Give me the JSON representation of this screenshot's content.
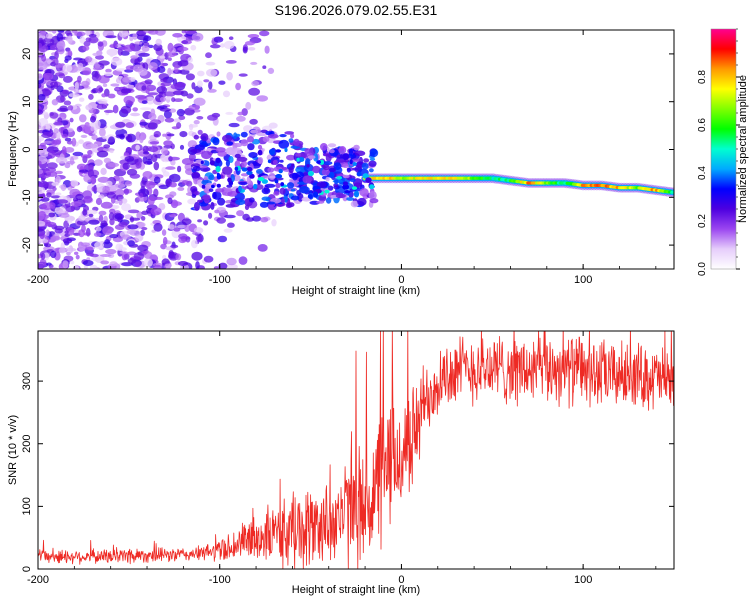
{
  "chart_data": [
    {
      "type": "heatmap",
      "title": "S196.2026.079.02.55.E31",
      "xlabel": "Height of straight line (km)",
      "ylabel": "Frequency (Hz)",
      "xlim": [
        -200,
        150
      ],
      "ylim": [
        -25,
        25
      ],
      "xticks": [
        -200,
        -100,
        0,
        100
      ],
      "yticks": [
        -20,
        -10,
        0,
        10,
        20
      ],
      "colorbar": {
        "label": "Normalized spectral amplitude",
        "range": [
          0.0,
          1.0
        ],
        "ticks": [
          0.0,
          0.2,
          0.4,
          0.6,
          0.8
        ],
        "colormap": [
          "#ffffff",
          "#e6cdfb",
          "#9b46f0",
          "#4d00e0",
          "#0000ff",
          "#00aaff",
          "#00ffd0",
          "#00ff00",
          "#80ff00",
          "#ffff00",
          "#ff9900",
          "#ff0000",
          "#ff0090"
        ]
      },
      "ridge": {
        "x": [
          -110,
          -100,
          -90,
          -80,
          -70,
          -60,
          -50,
          -40,
          -30,
          -20,
          -10,
          0,
          10,
          20,
          30,
          40,
          50,
          60,
          70,
          80,
          90,
          100,
          110,
          120,
          130,
          140,
          150
        ],
        "y": [
          -5,
          -5,
          -5,
          -4,
          -4,
          -4,
          -6,
          -5,
          -5,
          -6,
          -6,
          -6,
          -6,
          -6,
          -6,
          -6,
          -6,
          -6.5,
          -7,
          -7,
          -7,
          -7.5,
          -7.5,
          -8,
          -8,
          -8.5,
          -9
        ]
      },
      "ridge_peak": {
        "x": [
          -20,
          -10,
          0,
          10,
          20,
          30,
          40,
          50,
          60,
          70,
          80,
          90,
          100,
          110,
          120,
          130,
          140,
          150
        ],
        "amplitude": [
          0.75,
          0.9,
          0.75,
          0.8,
          0.8,
          0.8,
          0.7,
          0.55,
          0.6,
          0.9,
          0.7,
          0.55,
          0.9,
          0.9,
          0.85,
          0.7,
          0.9,
          0.55
        ]
      }
    },
    {
      "type": "line",
      "xlabel": "Height of straight line (km)",
      "ylabel": "SNR (10 * v/v)",
      "xlim": [
        -200,
        150
      ],
      "ylim": [
        0,
        380
      ],
      "xticks": [
        -200,
        -100,
        0,
        100
      ],
      "yticks": [
        0,
        100,
        200,
        300
      ],
      "series": [
        {
          "name": "SNR",
          "color": "#ee2a24",
          "x": [
            -200,
            -190,
            -180,
            -170,
            -160,
            -150,
            -140,
            -130,
            -120,
            -110,
            -100,
            -90,
            -80,
            -70,
            -60,
            -50,
            -40,
            -30,
            -20,
            -15,
            -10,
            -5,
            0,
            5,
            10,
            15,
            20,
            25,
            30,
            40,
            50,
            60,
            70,
            80,
            90,
            100,
            110,
            120,
            130,
            140,
            150
          ],
          "mean": [
            20,
            20,
            20,
            20,
            20,
            22,
            22,
            22,
            23,
            25,
            30,
            40,
            50,
            55,
            60,
            65,
            75,
            90,
            100,
            120,
            150,
            170,
            180,
            200,
            240,
            280,
            300,
            310,
            315,
            320,
            320,
            320,
            315,
            320,
            320,
            315,
            310,
            310,
            310,
            305,
            300
          ],
          "spread": [
            12,
            12,
            12,
            12,
            12,
            15,
            12,
            12,
            12,
            12,
            20,
            30,
            40,
            50,
            70,
            70,
            70,
            90,
            110,
            120,
            120,
            110,
            100,
            90,
            80,
            70,
            60,
            60,
            60,
            60,
            60,
            60,
            60,
            60,
            60,
            60,
            60,
            55,
            55,
            55,
            55
          ]
        }
      ]
    }
  ]
}
